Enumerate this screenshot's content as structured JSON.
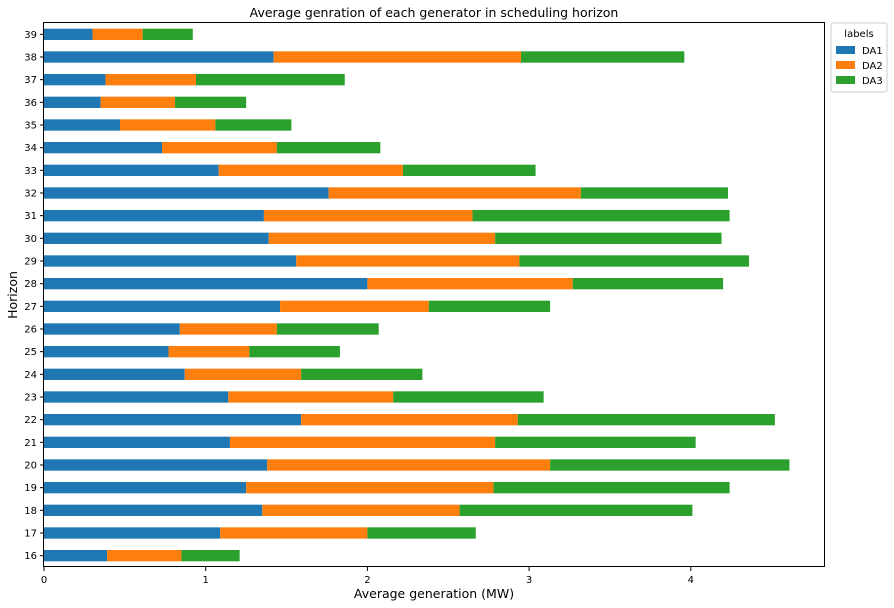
{
  "chart_data": {
    "type": "bar",
    "orientation": "horizontal",
    "stacked": true,
    "title": "Average genration of each generator in scheduling horizon",
    "xlabel": "Average generation (MW)",
    "ylabel": "Horizon",
    "xlim": [
      0,
      4.83
    ],
    "xticks": [
      0,
      1,
      2,
      3,
      4
    ],
    "grid": false,
    "legend": {
      "title": "labels",
      "placement": "outside-top-right"
    },
    "categories": [
      "16",
      "17",
      "18",
      "19",
      "20",
      "21",
      "22",
      "23",
      "24",
      "25",
      "26",
      "27",
      "28",
      "29",
      "30",
      "31",
      "32",
      "33",
      "34",
      "35",
      "36",
      "37",
      "38",
      "39"
    ],
    "series": [
      {
        "name": "DA1",
        "color": "#1f77b4",
        "values": [
          0.39,
          1.09,
          1.35,
          1.25,
          1.38,
          1.15,
          1.59,
          1.14,
          0.87,
          0.77,
          0.84,
          1.46,
          2.0,
          1.56,
          1.39,
          1.36,
          1.76,
          1.08,
          0.73,
          0.47,
          0.35,
          0.38,
          1.42,
          0.3
        ]
      },
      {
        "name": "DA2",
        "color": "#ff7f0e",
        "values": [
          0.46,
          0.91,
          1.22,
          1.53,
          1.75,
          1.64,
          1.34,
          1.02,
          0.72,
          0.5,
          0.6,
          0.92,
          1.27,
          1.38,
          1.4,
          1.29,
          1.56,
          1.14,
          0.71,
          0.59,
          0.46,
          0.56,
          1.53,
          0.31
        ]
      },
      {
        "name": "DA3",
        "color": "#2ca02c",
        "values": [
          0.36,
          0.67,
          1.44,
          1.46,
          1.48,
          1.24,
          1.59,
          0.93,
          0.75,
          0.56,
          0.63,
          0.75,
          0.93,
          1.42,
          1.4,
          1.59,
          0.91,
          0.82,
          0.64,
          0.47,
          0.44,
          0.92,
          1.01,
          0.31
        ]
      }
    ]
  }
}
